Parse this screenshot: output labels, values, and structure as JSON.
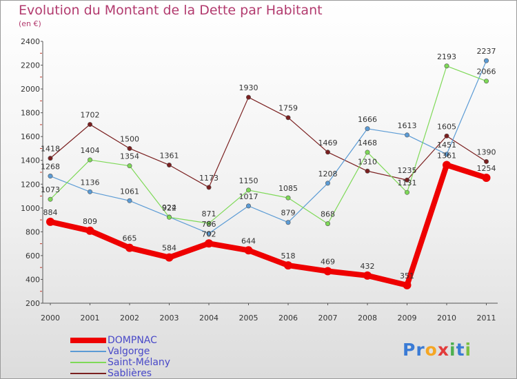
{
  "header": {
    "title": "Evolution du Montant de la Dette par Habitant",
    "unit": "(en €)"
  },
  "chart_data": {
    "type": "line",
    "title": "Evolution du Montant de la Dette par Habitant",
    "subtitle": "(en €)",
    "xlabel": "",
    "ylabel": "",
    "x": [
      "2000",
      "2001",
      "2002",
      "2003",
      "2004",
      "2005",
      "2006",
      "2007",
      "2008",
      "2009",
      "2010",
      "2011"
    ],
    "ylim": [
      200,
      2400
    ],
    "yticks": [
      200,
      400,
      600,
      800,
      1000,
      1200,
      1400,
      1600,
      1800,
      2000,
      2200,
      2400
    ],
    "grid": false,
    "legend_position": "bottom-left",
    "series": [
      {
        "name": "DOMPNAC",
        "color": "#ee0000",
        "values": [
          884,
          809,
          665,
          584,
          702,
          644,
          518,
          469,
          432,
          351,
          1361,
          1254
        ]
      },
      {
        "name": "Valgorge",
        "color": "#5b9bd5",
        "values": [
          1268,
          1136,
          1061,
          924,
          786,
          1017,
          879,
          1208,
          1666,
          1613,
          1451,
          2237
        ]
      },
      {
        "name": "Saint-Mélany",
        "color": "#7ed957",
        "values": [
          1073,
          1404,
          1354,
          922,
          871,
          1150,
          1085,
          868,
          1468,
          1131,
          2193,
          2066
        ]
      },
      {
        "name": "Sablières",
        "color": "#7a1f1f",
        "values": [
          1418,
          1702,
          1500,
          1361,
          1173,
          1930,
          1759,
          1469,
          1310,
          1235,
          1605,
          1390
        ]
      }
    ]
  },
  "logo": {
    "letters": [
      "P",
      "r",
      "o",
      "x",
      "i",
      "t",
      "i"
    ],
    "colors": [
      "#3a7bd5",
      "#3a7bd5",
      "#f5a623",
      "#e23b3b",
      "#4caf50",
      "#3a7bd5",
      "#7bc043"
    ]
  }
}
